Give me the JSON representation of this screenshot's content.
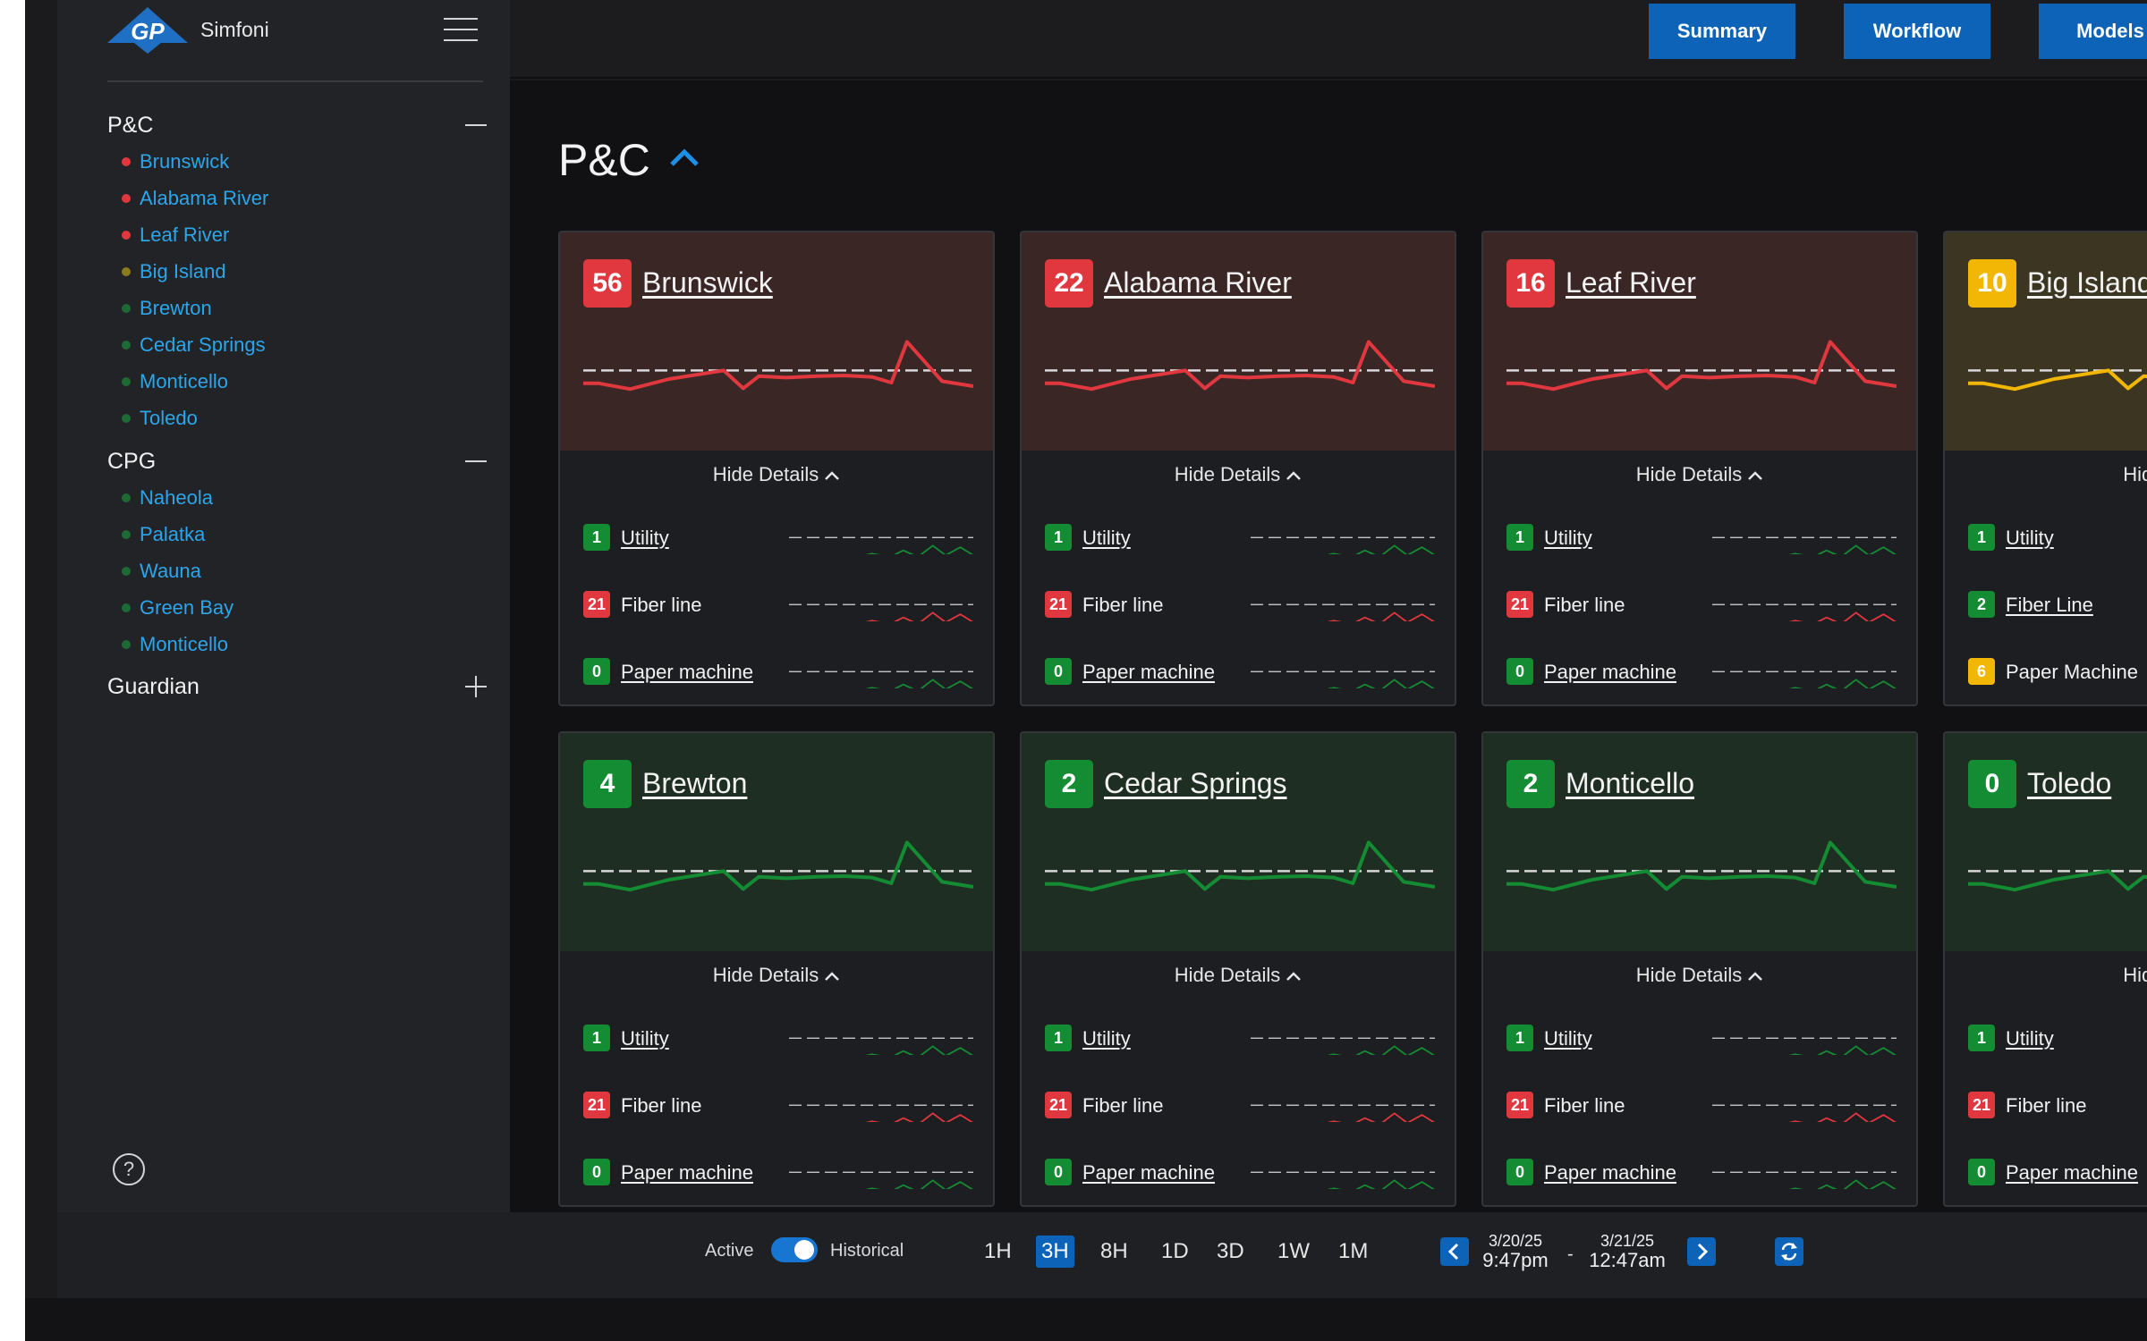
{
  "app": {
    "brand": "Simfoni",
    "logo_text": "GP"
  },
  "top_buttons": [
    "Summary",
    "Workflow",
    "Models"
  ],
  "sidebar": {
    "groups": [
      {
        "title": "P&C",
        "expanded": true,
        "items": [
          {
            "label": "Brunswick",
            "dot": "#e0383e"
          },
          {
            "label": "Alabama River",
            "dot": "#e0383e"
          },
          {
            "label": "Leaf River",
            "dot": "#e0383e"
          },
          {
            "label": "Big Island",
            "dot": "#8c7a1e"
          },
          {
            "label": "Brewton",
            "dot": "#1e6a35"
          },
          {
            "label": "Cedar Springs",
            "dot": "#1e6a35"
          },
          {
            "label": "Monticello",
            "dot": "#1e6a35"
          },
          {
            "label": "Toledo",
            "dot": "#1e6a35"
          }
        ]
      },
      {
        "title": "CPG",
        "expanded": true,
        "items": [
          {
            "label": "Naheola",
            "dot": "#1e6a35"
          },
          {
            "label": "Palatka",
            "dot": "#1e6a35"
          },
          {
            "label": "Wauna",
            "dot": "#1e6a35"
          },
          {
            "label": "Green Bay",
            "dot": "#1e6a35"
          },
          {
            "label": "Monticello",
            "dot": "#1e6a35"
          }
        ]
      },
      {
        "title": "Guardian",
        "expanded": false,
        "items": []
      }
    ],
    "help_icon": "?"
  },
  "main": {
    "section_title": "P&C",
    "hide_details_label": "Hide Details",
    "cards": [
      {
        "name": "Brunswick",
        "count": "56",
        "status": "red",
        "subs": [
          {
            "count": "1",
            "label": "Utility",
            "status": "green",
            "link": true
          },
          {
            "count": "21",
            "label": "Fiber line",
            "status": "red",
            "link": false
          },
          {
            "count": "0",
            "label": "Paper machine",
            "status": "green",
            "link": true
          }
        ]
      },
      {
        "name": "Alabama River",
        "count": "22",
        "status": "red",
        "subs": [
          {
            "count": "1",
            "label": "Utility",
            "status": "green",
            "link": true
          },
          {
            "count": "21",
            "label": "Fiber line",
            "status": "red",
            "link": false
          },
          {
            "count": "0",
            "label": "Paper machine",
            "status": "green",
            "link": true
          }
        ]
      },
      {
        "name": "Leaf River",
        "count": "16",
        "status": "red",
        "subs": [
          {
            "count": "1",
            "label": "Utility",
            "status": "green",
            "link": true
          },
          {
            "count": "21",
            "label": "Fiber line",
            "status": "red",
            "link": false
          },
          {
            "count": "0",
            "label": "Paper machine",
            "status": "green",
            "link": true
          }
        ]
      },
      {
        "name": "Big Island",
        "count": "10",
        "status": "yellow",
        "hide_label": "Hide Det",
        "subs": [
          {
            "count": "1",
            "label": "Utility",
            "status": "green",
            "link": true
          },
          {
            "count": "2",
            "label": "Fiber Line",
            "status": "green",
            "link": true
          },
          {
            "count": "6",
            "label": "Paper Machine",
            "status": "yellow",
            "link": false
          }
        ]
      },
      {
        "name": "Brewton",
        "count": "4",
        "status": "green",
        "subs": [
          {
            "count": "1",
            "label": "Utility",
            "status": "green",
            "link": true
          },
          {
            "count": "21",
            "label": "Fiber line",
            "status": "red",
            "link": false
          },
          {
            "count": "0",
            "label": "Paper machine",
            "status": "green",
            "link": true
          }
        ]
      },
      {
        "name": "Cedar Springs",
        "count": "2",
        "status": "green",
        "subs": [
          {
            "count": "1",
            "label": "Utility",
            "status": "green",
            "link": true
          },
          {
            "count": "21",
            "label": "Fiber line",
            "status": "red",
            "link": false
          },
          {
            "count": "0",
            "label": "Paper machine",
            "status": "green",
            "link": true
          }
        ]
      },
      {
        "name": "Monticello",
        "count": "2",
        "status": "green",
        "subs": [
          {
            "count": "1",
            "label": "Utility",
            "status": "green",
            "link": true
          },
          {
            "count": "21",
            "label": "Fiber line",
            "status": "red",
            "link": false
          },
          {
            "count": "0",
            "label": "Paper machine",
            "status": "green",
            "link": true
          }
        ]
      },
      {
        "name": "Toledo",
        "count": "0",
        "status": "green",
        "hide_label": "Hide Det",
        "subs": [
          {
            "count": "1",
            "label": "Utility",
            "status": "green",
            "link": true
          },
          {
            "count": "21",
            "label": "Fiber line",
            "status": "red",
            "link": false
          },
          {
            "count": "0",
            "label": "Paper machine",
            "status": "green",
            "link": true
          }
        ]
      }
    ]
  },
  "bottom_bar": {
    "mode_active": "Active",
    "mode_historical": "Historical",
    "historical_on": true,
    "ranges": [
      "1H",
      "3H",
      "8H",
      "1D",
      "3D",
      "1W",
      "1M"
    ],
    "selected_range": "3H",
    "date_from": {
      "date": "3/20/25",
      "time": "9:47pm"
    },
    "date_separator": "-",
    "date_to": {
      "date": "3/21/25",
      "time": "12:47am"
    }
  },
  "colors": {
    "accent": "#0d63b8",
    "link": "#2ba6ec",
    "red": "#e0383e",
    "yellow": "#f2b705",
    "green": "#148c33"
  }
}
